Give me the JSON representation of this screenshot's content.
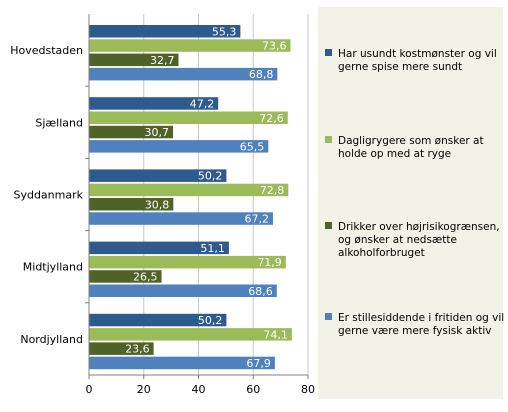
{
  "chart_data": {
    "type": "bar",
    "orientation": "horizontal",
    "categories": [
      "Hovedstaden",
      "Sjælland",
      "Syddanmark",
      "Midtjylland",
      "Nordjylland"
    ],
    "series": [
      {
        "name": "Har usundt kostmønster og vil gerne spise mere sundt",
        "color": "#2e5a8e",
        "values": [
          55.3,
          47.2,
          50.2,
          51.1,
          50.2
        ],
        "labels": [
          "55,3",
          "47,2",
          "50,2",
          "51,1",
          "50,2"
        ]
      },
      {
        "name": "Dagligrygere som ønsker at holde op med at ryge",
        "color": "#9bbb59",
        "values": [
          73.6,
          72.6,
          72.8,
          71.9,
          74.1
        ],
        "labels": [
          "73,6",
          "72,6",
          "72,8",
          "71,9",
          "74,1"
        ]
      },
      {
        "name": "Drikker over højrisikogrænsen, og ønsker at nedsætte alkoholforbruget",
        "color": "#4f6228",
        "values": [
          32.7,
          30.7,
          30.8,
          26.5,
          23.6
        ],
        "labels": [
          "32,7",
          "30,7",
          "30,8",
          "26,5",
          "23,6"
        ]
      },
      {
        "name": "Er stillesiddende i fritiden og vil gerne være mere fysisk aktiv",
        "color": "#4f81bd",
        "values": [
          68.8,
          65.5,
          67.2,
          68.6,
          67.9
        ],
        "labels": [
          "68,8",
          "65,5",
          "67,2",
          "68,6",
          "67,9"
        ]
      }
    ],
    "xlim": [
      0,
      80
    ],
    "xticks": [
      0,
      20,
      40,
      60,
      80
    ],
    "grid": true,
    "legend_position": "right",
    "legend_background": "#f2f2e6",
    "legend_lines": [
      [
        "Har usundt kostmønster og vil",
        "gerne spise mere sundt"
      ],
      [
        "Dagligrygere som ønsker at",
        "holde op med at ryge"
      ],
      [
        "Drikker over højrisikogrænsen,",
        "og ønsker at nedsætte",
        "alkoholforbruget"
      ],
      [
        "Er stillesiddende i fritiden og vil",
        "gerne være mere fysisk aktiv"
      ]
    ]
  }
}
